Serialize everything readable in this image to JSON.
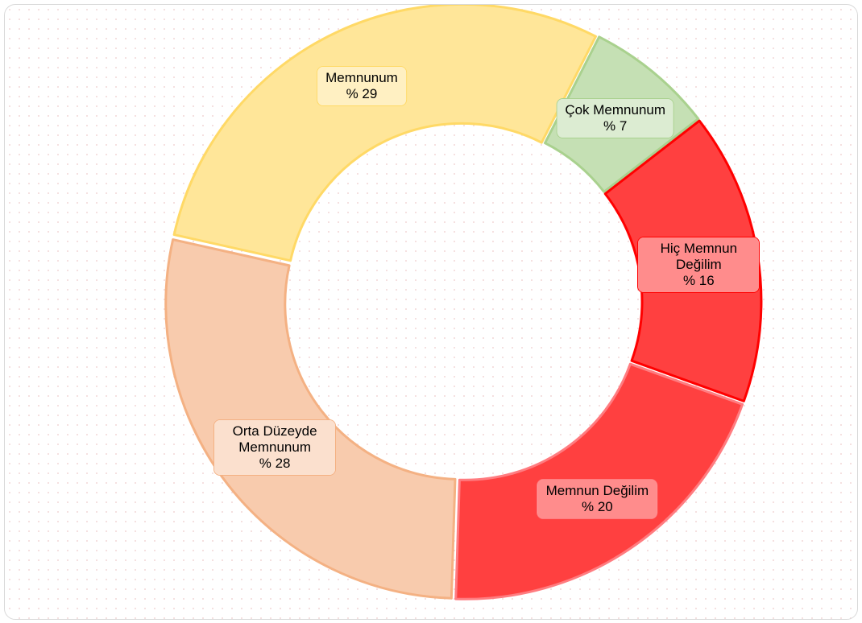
{
  "chart_data": {
    "type": "donut",
    "categories": [
      "Çok Memnunum",
      "Hiç Memnun Değilim",
      "Memnun Değilim",
      "Orta Düzeyde Memnunum",
      "Memnunum"
    ],
    "values": [
      7,
      16,
      20,
      28,
      29
    ],
    "value_labels": [
      "% 7",
      "% 16",
      "% 20",
      "% 28",
      "% 29"
    ],
    "colors": [
      "#c5e0b4",
      "#ff4040",
      "#ff4040",
      "#f8cbad",
      "#ffe699"
    ],
    "stroke_colors": [
      "#a9d18e",
      "#ff0000",
      "#ff7c80",
      "#f4b183",
      "#ffd966"
    ]
  }
}
